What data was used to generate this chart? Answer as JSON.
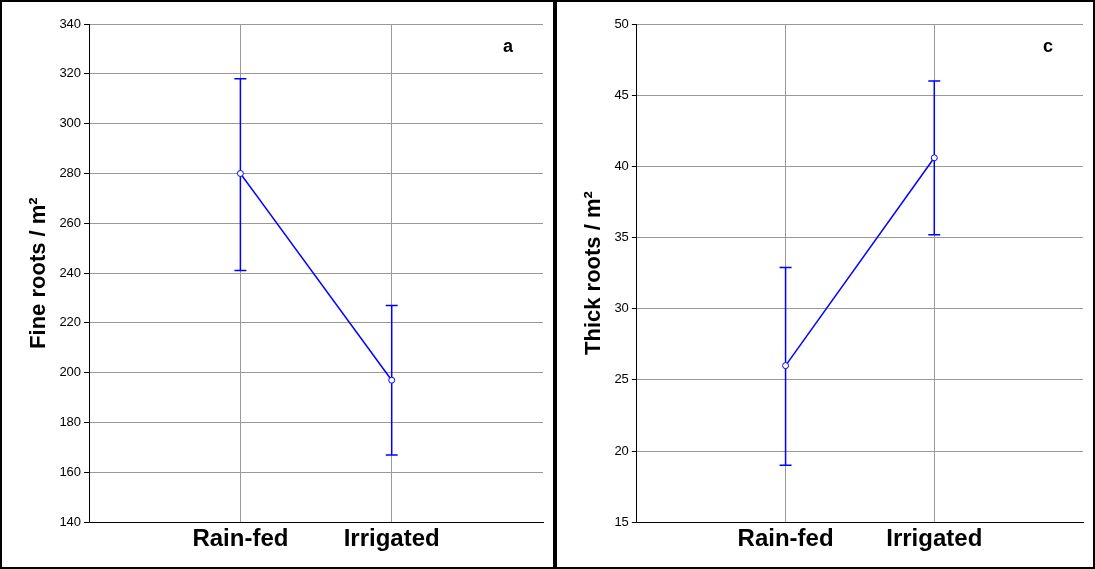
{
  "chart_data": [
    {
      "type": "line",
      "categories": [
        "Rain-fed",
        "Irrigated"
      ],
      "ylabel": "Fine roots / m²",
      "annotations": [
        "a"
      ],
      "series": [
        {
          "color": "#0000ff",
          "values": [
            280,
            197
          ],
          "errors": [
            [
              241,
              318
            ],
            [
              167,
              227
            ]
          ]
        }
      ],
      "ylim": [
        140,
        340
      ],
      "yticks": [
        140,
        160,
        180,
        200,
        220,
        240,
        260,
        280,
        300,
        320,
        340
      ],
      "grid": true,
      "marker": "circle",
      "line_style": "solid",
      "legend": false
    },
    {
      "type": "line",
      "categories": [
        "Rain-fed",
        "Irrigated"
      ],
      "ylabel": "Thick roots / m²",
      "annotations": [
        "c"
      ],
      "series": [
        {
          "color": "#0000ff",
          "values": [
            26,
            40.6
          ],
          "errors": [
            [
              19,
              32.9
            ],
            [
              35.2,
              46
            ]
          ]
        }
      ],
      "ylim": [
        15,
        50
      ],
      "yticks": [
        15,
        20,
        25,
        30,
        35,
        40,
        45,
        50
      ],
      "grid": true,
      "marker": "circle",
      "line_style": "solid",
      "legend": false
    }
  ]
}
